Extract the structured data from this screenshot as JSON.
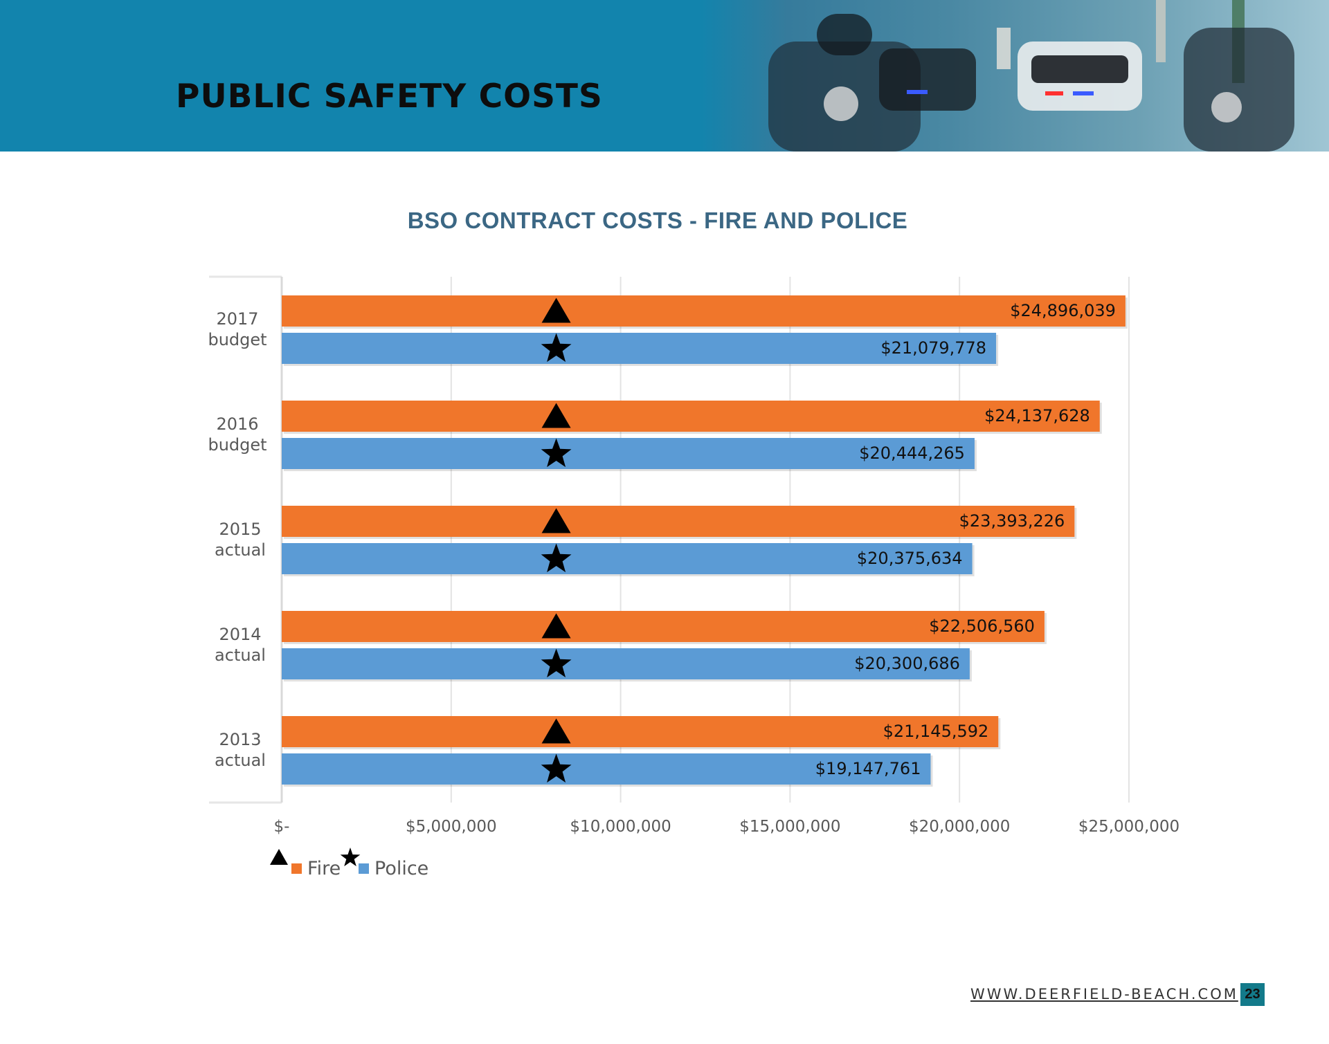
{
  "header": {
    "title": "PUBLIC SAFETY COSTS"
  },
  "footer": {
    "url": "WWW.DEERFIELD-BEACH.COM",
    "page_number": "23"
  },
  "colors": {
    "header_bg": "#1284ad",
    "fire": "#f0762b",
    "police": "#5b9bd5",
    "title": "#3b6784"
  },
  "chart_data": {
    "type": "bar",
    "orientation": "horizontal",
    "title": "BSO CONTRACT COSTS - FIRE AND POLICE",
    "categories": [
      {
        "line1": "2017",
        "line2": "budget"
      },
      {
        "line1": "2016",
        "line2": "budget"
      },
      {
        "line1": "2015",
        "line2": "actual"
      },
      {
        "line1": "2014",
        "line2": "actual"
      },
      {
        "line1": "2013",
        "line2": "actual"
      }
    ],
    "series": [
      {
        "name": "Fire",
        "marker": "triangle-icon",
        "color": "#f0762b",
        "values": [
          24896039,
          24137628,
          23393226,
          22506560,
          21145592
        ],
        "labels": [
          "$24,896,039",
          "$24,137,628",
          "$23,393,226",
          "$22,506,560",
          "$21,145,592"
        ]
      },
      {
        "name": "Police",
        "marker": "star-icon",
        "color": "#5b9bd5",
        "values": [
          21079778,
          20444265,
          20375634,
          20300686,
          19147761
        ],
        "labels": [
          "$21,079,778",
          "$20,444,265",
          "$20,375,634",
          "$20,300,686",
          "$19,147,761"
        ]
      }
    ],
    "xlim": [
      0,
      25000000
    ],
    "xticks": [
      0,
      5000000,
      10000000,
      15000000,
      20000000,
      25000000
    ],
    "xtick_labels": [
      "$-",
      "$5,000,000",
      "$10,000,000",
      "$15,000,000",
      "$20,000,000",
      "$25,000,000"
    ],
    "marker_value": 8100000,
    "grid": true,
    "legend": "bottom-left"
  }
}
